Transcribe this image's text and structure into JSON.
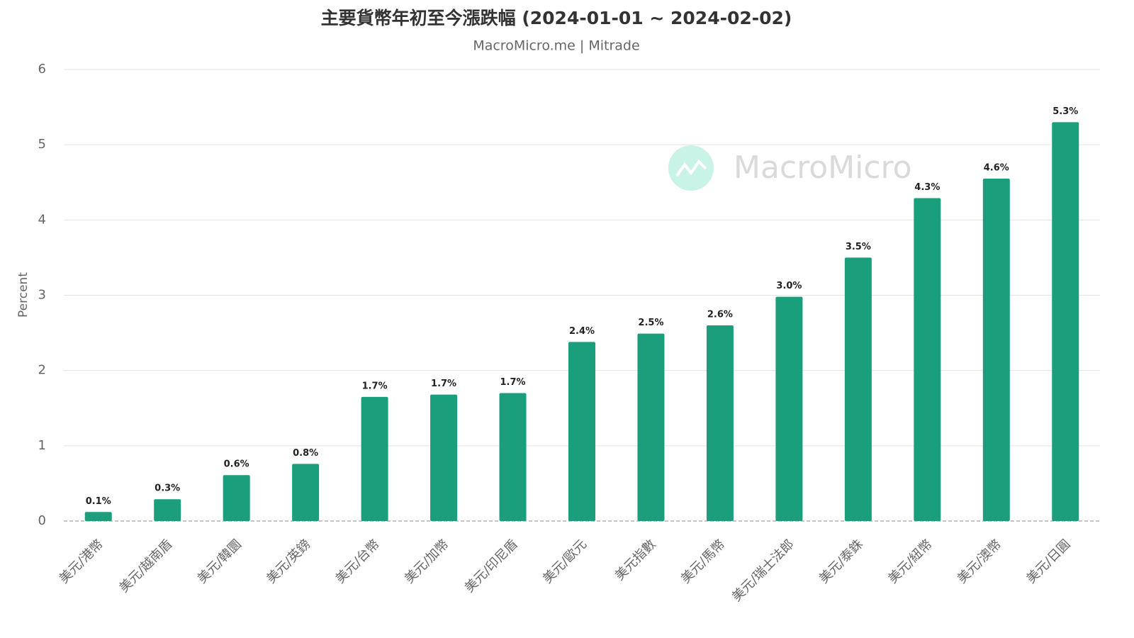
{
  "chart_data": {
    "type": "bar",
    "title": "主要貨幣年初至今漲跌幅 (2024-01-01 ~ 2024-02-02)",
    "subtitle": "MacroMicro.me | Mitrade",
    "watermark": "MacroMicro",
    "ylabel": "Percent",
    "categories": [
      "美元/港幣",
      "美元/越南盾",
      "美元/韓圜",
      "美元/英鎊",
      "美元/台幣",
      "美元/加幣",
      "美元/印尼盾",
      "美元/歐元",
      "美元指數",
      "美元/馬幣",
      "美元/瑞士法郎",
      "美元/泰銖",
      "美元/紐幣",
      "美元/澳幣",
      "美元/日圓"
    ],
    "values": [
      0.12,
      0.29,
      0.61,
      0.76,
      1.65,
      1.68,
      1.7,
      2.38,
      2.49,
      2.6,
      2.98,
      3.5,
      4.29,
      4.55,
      5.3
    ],
    "value_labels": [
      "0.1%",
      "0.3%",
      "0.6%",
      "0.8%",
      "1.7%",
      "1.7%",
      "1.7%",
      "2.4%",
      "2.5%",
      "2.6%",
      "3.0%",
      "3.5%",
      "4.3%",
      "4.6%",
      "5.3%"
    ],
    "color": "#1a9e7c",
    "ylim": [
      0,
      6
    ],
    "yticks": [
      0,
      1,
      2,
      3,
      4,
      5,
      6
    ],
    "grid": true
  }
}
